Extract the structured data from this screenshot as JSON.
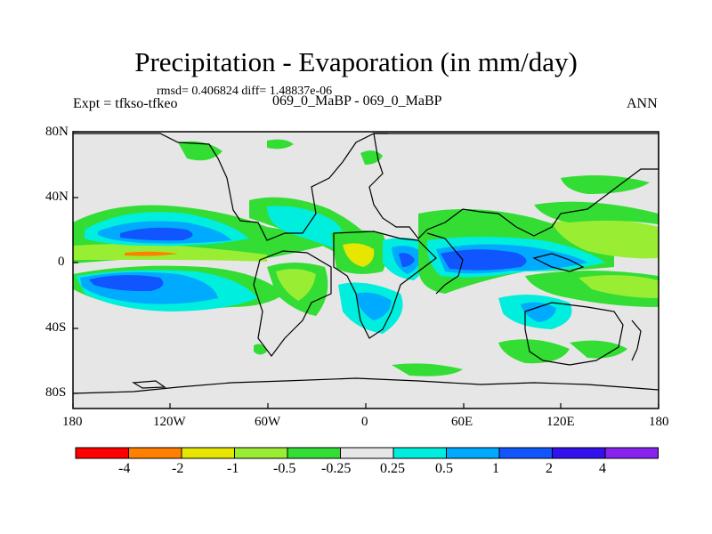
{
  "title": "Precipitation - Evaporation (in mm/day)",
  "stats": "rmsd= 0.406824 diff= 1.48837e-06",
  "expt": "Expt = tfkso-tfkeo",
  "case": "069_0_MaBP - 069_0_MaBP",
  "season": "ANN",
  "map": {
    "lat_labels": [
      "80N",
      "40N",
      "0",
      "40S",
      "80S"
    ],
    "lon_labels": [
      "180",
      "120W",
      "60W",
      "0",
      "60E",
      "120E",
      "180"
    ],
    "background_color": "#e6e6e6"
  },
  "colorbar": {
    "labels": [
      "-4",
      "-2",
      "-1",
      "-0.5",
      "-0.25",
      "0.25",
      "0.5",
      "1",
      "2",
      "4"
    ],
    "colors": [
      "#ff0000",
      "#ff8000",
      "#e6e600",
      "#99ee33",
      "#33dd33",
      "#e6e6e6",
      "#00eedd",
      "#00aaff",
      "#1155ff",
      "#3311ee",
      "#8822ee"
    ]
  }
}
